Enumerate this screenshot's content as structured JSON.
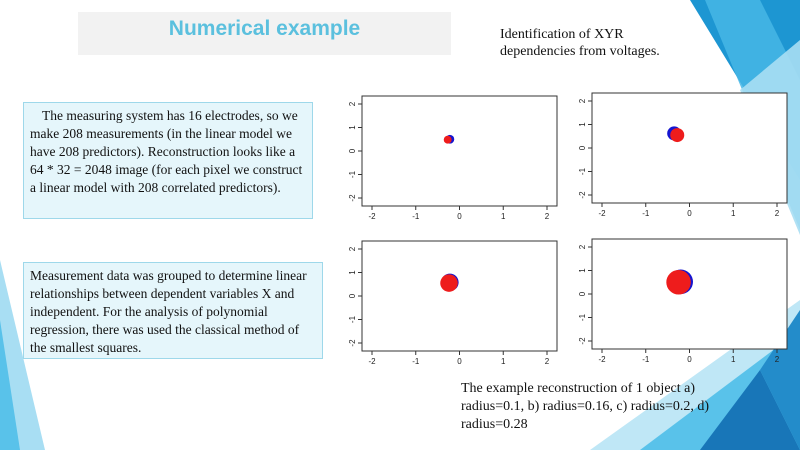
{
  "title": "Numerical example",
  "identification": "Identification of XYR dependencies from voltages.",
  "textbox1": "The measuring system has 16 electrodes, so we make 208 measurements (in the linear model we have 208 predictors). Reconstruction looks like a 64 * 32 = 2048 image (for each pixel we construct a linear model with 208 correlated predictors).",
  "textbox2": "Measurement data was grouped to determine linear relationships between dependent variables X and independent. For the analysis of polynomial regression, there was used the classical method of the smallest squares.",
  "caption": "The example reconstruction of 1 object a) radius=0.1, b) radius=0.16, c) radius=0.2, d) radius=0.28",
  "colors": {
    "title": "#5bc0de",
    "true_object": "#1515d0",
    "reconstruction": "#ee1c1c",
    "box_fill": "#e5f6fb",
    "box_border": "#9ed8ea"
  },
  "chart_data": [
    {
      "type": "scatter",
      "xlim": [
        -2,
        2
      ],
      "ylim": [
        -2,
        2
      ],
      "x_ticks": [
        "-2",
        "-1",
        "0",
        "1",
        "2"
      ],
      "y_ticks": [
        "-2",
        "-1",
        "0",
        "1",
        "2"
      ],
      "blue_circle": {
        "cx": -0.22,
        "cy": 0.5,
        "r": 0.1
      },
      "red_circle": {
        "cx": -0.27,
        "cy": 0.48,
        "r": 0.09
      }
    },
    {
      "type": "scatter",
      "xlim": [
        -2,
        2
      ],
      "ylim": [
        -2,
        2
      ],
      "x_ticks": [
        "-2",
        "-1",
        "0",
        "1",
        "2"
      ],
      "y_ticks": [
        "-2",
        "-1",
        "0",
        "1",
        "2"
      ],
      "blue_circle": {
        "cx": -0.35,
        "cy": 0.62,
        "r": 0.16
      },
      "red_circle": {
        "cx": -0.28,
        "cy": 0.55,
        "r": 0.16
      }
    },
    {
      "type": "scatter",
      "xlim": [
        -2,
        2
      ],
      "ylim": [
        -2,
        2
      ],
      "x_ticks": [
        "-2",
        "-1",
        "0",
        "1",
        "2"
      ],
      "y_ticks": [
        "-2",
        "-1",
        "0",
        "1",
        "2"
      ],
      "blue_circle": {
        "cx": -0.22,
        "cy": 0.58,
        "r": 0.2
      },
      "red_circle": {
        "cx": -0.24,
        "cy": 0.55,
        "r": 0.2
      }
    },
    {
      "type": "scatter",
      "xlim": [
        -2,
        2
      ],
      "ylim": [
        -2,
        2
      ],
      "x_ticks": [
        "-2",
        "-1",
        "0",
        "1",
        "2"
      ],
      "y_ticks": [
        "-2",
        "-1",
        "0",
        "1",
        "2"
      ],
      "blue_circle": {
        "cx": -0.2,
        "cy": 0.52,
        "r": 0.28
      },
      "red_circle": {
        "cx": -0.25,
        "cy": 0.5,
        "r": 0.28
      }
    }
  ]
}
